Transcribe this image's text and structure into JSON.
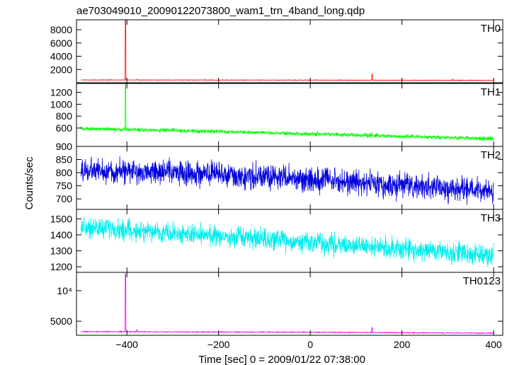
{
  "chart_data": {
    "type": "line",
    "title": "ae703049010_20090122073800_wam1_trn_4band_long.qdp",
    "xlabel": "Time [sec] 0 = 2009/01/22 07:38:00",
    "ylabel": "Counts/sec",
    "xlim": [
      -510,
      420
    ],
    "x_ticks": [
      -400,
      -200,
      0,
      200,
      400
    ],
    "x_tick_labels": [
      "−400",
      "−200",
      "0",
      "200",
      "400"
    ],
    "x_start": -500,
    "x_end": 400,
    "panels": [
      {
        "name": "TH0",
        "color": "#ff0000",
        "ylim": [
          0,
          9500
        ],
        "y_ticks": [
          2000,
          4000,
          6000,
          8000
        ],
        "y_tick_labels": [
          "2000",
          "4000",
          "6000",
          "8000"
        ],
        "baseline": [
          [
            -500,
            420
          ],
          [
            0,
            400
          ],
          [
            400,
            370
          ]
        ],
        "noise": 30,
        "spikes": [
          [
            -403,
            9500
          ],
          [
            -378,
            520
          ],
          [
            135,
            1300
          ],
          [
            -230,
            480
          ],
          [
            310,
            500
          ]
        ]
      },
      {
        "name": "TH1",
        "color": "#00ff00",
        "ylim": [
          290,
          1350
        ],
        "y_ticks": [
          600,
          800,
          1000,
          1200
        ],
        "y_tick_labels": [
          "600",
          "800",
          "1000",
          "1200"
        ],
        "y_extra_labels": [
          {
            "value": 290,
            "label": "900"
          }
        ],
        "baseline": [
          [
            -500,
            590
          ],
          [
            -300,
            560
          ],
          [
            0,
            500
          ],
          [
            400,
            420
          ]
        ],
        "noise": 28,
        "spikes": [
          [
            -403,
            1350
          ],
          [
            135,
            520
          ]
        ]
      },
      {
        "name": "TH2",
        "color": "#0000dd",
        "ylim": [
          660,
          900
        ],
        "y_ticks": [
          700,
          750,
          800,
          850
        ],
        "y_tick_labels": [
          "700",
          "750",
          "800",
          "850"
        ],
        "baseline": [
          [
            -500,
            808
          ],
          [
            -300,
            800
          ],
          [
            0,
            775
          ],
          [
            400,
            725
          ]
        ],
        "noise": 38,
        "spikes": []
      },
      {
        "name": "TH3",
        "color": "#00eeee",
        "ylim": [
          1165,
          1560
        ],
        "y_ticks": [
          1200,
          1300,
          1400,
          1500
        ],
        "y_tick_labels": [
          "1200",
          "1300",
          "1400",
          "1500"
        ],
        "baseline": [
          [
            -500,
            1450
          ],
          [
            -300,
            1410
          ],
          [
            0,
            1350
          ],
          [
            400,
            1270
          ]
        ],
        "noise": 52,
        "spikes": []
      },
      {
        "name": "TH0123",
        "color": "#ee00ee",
        "ylim": [
          2700,
          13000
        ],
        "y_ticks": [
          5000,
          10000
        ],
        "y_tick_labels": [
          "5000",
          "10⁴"
        ],
        "baseline": [
          [
            -500,
            3300
          ],
          [
            0,
            3200
          ],
          [
            400,
            3050
          ]
        ],
        "noise": 55,
        "spikes": [
          [
            -403,
            12800
          ],
          [
            135,
            3950
          ],
          [
            -378,
            3600
          ]
        ]
      }
    ]
  }
}
